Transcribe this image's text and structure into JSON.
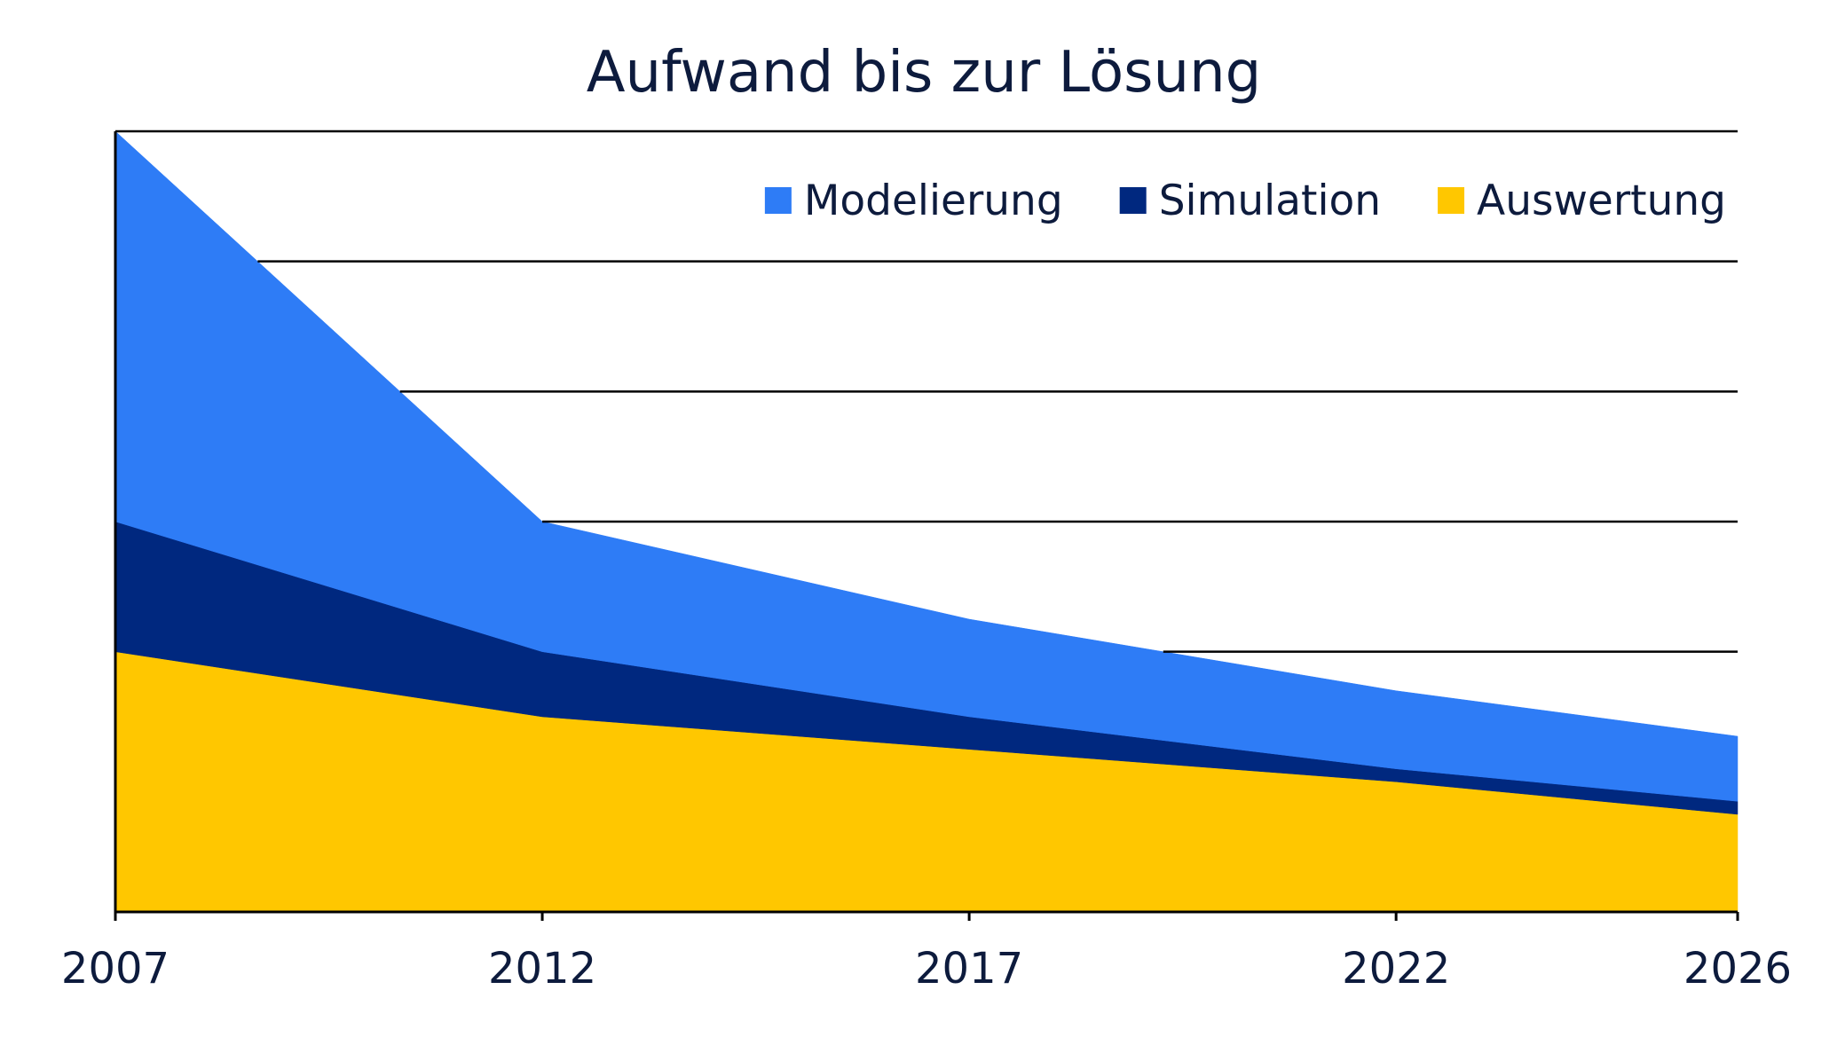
{
  "chart_data": {
    "type": "area",
    "stacked": true,
    "title": "Aufwand bis zur Lösung",
    "xlabel": "",
    "ylabel": "",
    "x": [
      2007,
      2012,
      2017,
      2022,
      2026
    ],
    "x_tick_labels": [
      "2007",
      "2012",
      "2017",
      "2022",
      "2026"
    ],
    "ylim": [
      0,
      6
    ],
    "y_tick_labels_shown": false,
    "grid": "horizontal",
    "legend_position": "top-right",
    "series": [
      {
        "name": "Auswertung",
        "color": "#FFC700",
        "values": [
          2.0,
          1.5,
          1.25,
          1.0,
          0.75
        ]
      },
      {
        "name": "Simulation",
        "color": "#00287F",
        "values": [
          1.0,
          0.5,
          0.25,
          0.1,
          0.1
        ]
      },
      {
        "name": "Modelierung",
        "color": "#2E7CF6",
        "values": [
          3.0,
          1.0,
          0.75,
          0.6,
          0.5
        ]
      }
    ],
    "legend_order": [
      "Modelierung",
      "Simulation",
      "Auswertung"
    ]
  }
}
